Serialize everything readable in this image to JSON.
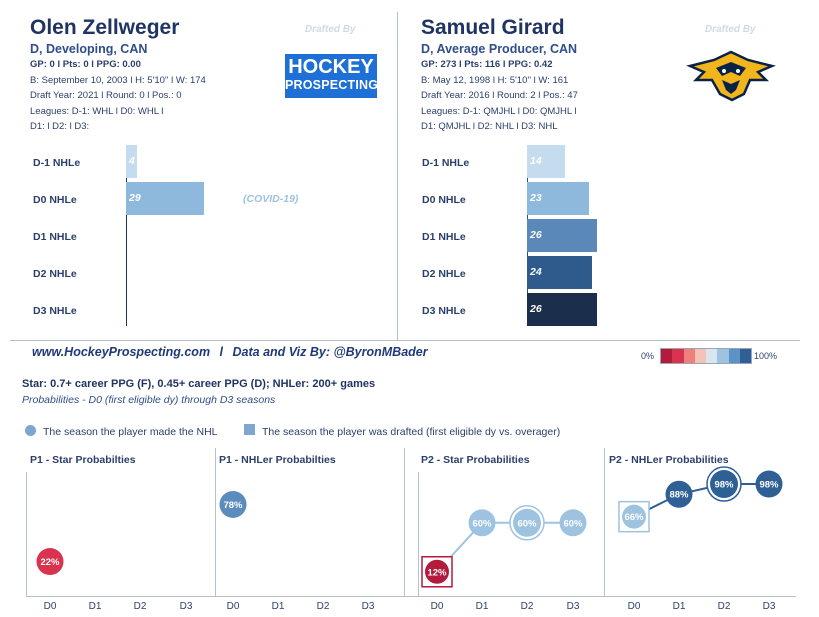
{
  "players": [
    {
      "name": "Olen Zellweger",
      "subtitle": "D, Developing, CAN",
      "gp_line": "GP: 0 l Pts: 0 l PPG: 0.00",
      "bio": "B: September 10, 2003 l H: 5'10'' l W: 174",
      "draft": "Draft Year: 2021 l Round: 0 l Pos.: 0",
      "leagues": "Leagues: D-1: WHL l D0: WHL l",
      "leagues2": "D1:  l D2:  l D3:",
      "drafted_by": "Drafted By",
      "logo_line1": "HOCKEY",
      "logo_line2": "PROSPECTING"
    },
    {
      "name": "Samuel Girard",
      "subtitle": "D, Average Producer, CAN",
      "gp_line": "GP: 273 l Pts: 116 l PPG: 0.42",
      "bio": "B: May 12, 1998 l H: 5'10'' l W: 161",
      "draft": "Draft Year: 2016 l Round: 2 l Pos.: 47",
      "leagues": "Leagues: D-1: QMJHL l D0: QMJHL l",
      "leagues2": "D1: QMJHL l D2: NHL l D3: NHL",
      "drafted_by": "Drafted By"
    }
  ],
  "bar_labels": [
    "D-1 NHLe",
    "D0 NHLe",
    "D1 NHLe",
    "D2 NHLe",
    "D3 NHLe"
  ],
  "covid_note": "(COVID-19)",
  "credit_site": "www.HockeyProspecting.com",
  "credit_sep": "l",
  "credit_by": "Data and Viz By: @ByronMBader",
  "legend_min": "0%",
  "legend_max": "100%",
  "legend_colors": [
    "#b31b3c",
    "#d9334f",
    "#f0807a",
    "#f5c3b6",
    "#d9e6f2",
    "#9ec3e0",
    "#5b93c4",
    "#2e5f95"
  ],
  "def_line": "Star: 0.7+ career PPG (F), 0.45+ career PPG (D); NHLer: 200+ games",
  "prob_line": "Probabilities - D0 (first eligible dy) through D3 seasons",
  "legend_circle": "The season the player made the NHL",
  "legend_square": "The season the player was drafted (first eligible dy vs. overager)",
  "panel_titles": [
    "P1 - Star Probabilties",
    "P1 - NHLer Probabilties",
    "P2 - Star Probabilities",
    "P2 - NHLer Probabilities"
  ],
  "seasons": [
    "D0",
    "D1",
    "D2",
    "D3"
  ],
  "chart_data": [
    {
      "type": "bar",
      "player": "Olen Zellweger",
      "categories": [
        "D-1 NHLe",
        "D0 NHLe",
        "D1 NHLe",
        "D2 NHLe",
        "D3 NHLe"
      ],
      "values": [
        4,
        29,
        0,
        0,
        0
      ],
      "labels": [
        "4",
        "29",
        "",
        "",
        ""
      ],
      "colors": [
        "#c4dcee",
        "#8fb9dc",
        "#3e6fa3",
        "#2b527f",
        "#1c3557"
      ],
      "xlim": [
        0,
        30
      ]
    },
    {
      "type": "bar",
      "player": "Samuel Girard",
      "categories": [
        "D-1 NHLe",
        "D0 NHLe",
        "D1 NHLe",
        "D2 NHLe",
        "D3 NHLe"
      ],
      "values": [
        14,
        23,
        26,
        24,
        26
      ],
      "labels": [
        "14",
        "23",
        "26",
        "24",
        "26"
      ],
      "colors": [
        "#c4dcee",
        "#8fb9dc",
        "#5a88b8",
        "#2e5b8c",
        "#1b2f4d"
      ],
      "xlim": [
        0,
        30
      ]
    },
    {
      "type": "line",
      "title": "P1 - Star Probabilties",
      "x": [
        "D0",
        "D1",
        "D2",
        "D3"
      ],
      "values": [
        22,
        null,
        null,
        null
      ],
      "colors": [
        "#d9334f"
      ],
      "markers": []
    },
    {
      "type": "line",
      "title": "P1 - NHLer Probabilties",
      "x": [
        "D0",
        "D1",
        "D2",
        "D3"
      ],
      "values": [
        78,
        null,
        null,
        null
      ],
      "colors": [
        "#5b8cbd"
      ],
      "markers": []
    },
    {
      "type": "line",
      "title": "P2 - Star Probabilities",
      "x": [
        "D0",
        "D1",
        "D2",
        "D3"
      ],
      "values": [
        12,
        60,
        60,
        60
      ],
      "colors": [
        "#b31b3c",
        "#9ec3e0",
        "#9ec3e0",
        "#9ec3e0"
      ],
      "markers": [
        {
          "season": "D0",
          "marker": "square"
        },
        {
          "season": "D2",
          "marker": "circle"
        }
      ]
    },
    {
      "type": "line",
      "title": "P2 - NHLer Probabilities",
      "x": [
        "D0",
        "D1",
        "D2",
        "D3"
      ],
      "values": [
        66,
        88,
        98,
        98
      ],
      "colors": [
        "#9ec3e0",
        "#2e5f95",
        "#2e5f95",
        "#2e5f95"
      ],
      "markers": [
        {
          "season": "D0",
          "marker": "square"
        },
        {
          "season": "D2",
          "marker": "circle"
        }
      ]
    }
  ]
}
